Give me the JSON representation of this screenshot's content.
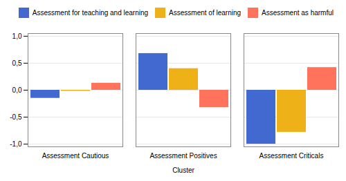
{
  "chart_data": {
    "type": "bar",
    "xlabel": "Cluster",
    "categories": [
      "Assessment Cautious",
      "Assessment Positives",
      "Assessment Criticals"
    ],
    "series": [
      {
        "name": "Assessment for teaching and learning",
        "values": [
          -0.15,
          0.68,
          -1.0
        ]
      },
      {
        "name": "Assessment of learning",
        "values": [
          -0.02,
          0.4,
          -0.78
        ]
      },
      {
        "name": "Assessment as harmful",
        "values": [
          0.13,
          -0.32,
          0.42
        ]
      }
    ],
    "ylim": [
      -1.05,
      1.05
    ],
    "yticks": [
      {
        "value": -1.0,
        "label": "-1,0"
      },
      {
        "value": -0.5,
        "label": "-0,5"
      },
      {
        "value": 0.0,
        "label": "0,0"
      },
      {
        "value": 0.5,
        "label": "0,5"
      },
      {
        "value": 1.0,
        "label": "1,0"
      }
    ],
    "grid": true,
    "legend": "upper right"
  }
}
